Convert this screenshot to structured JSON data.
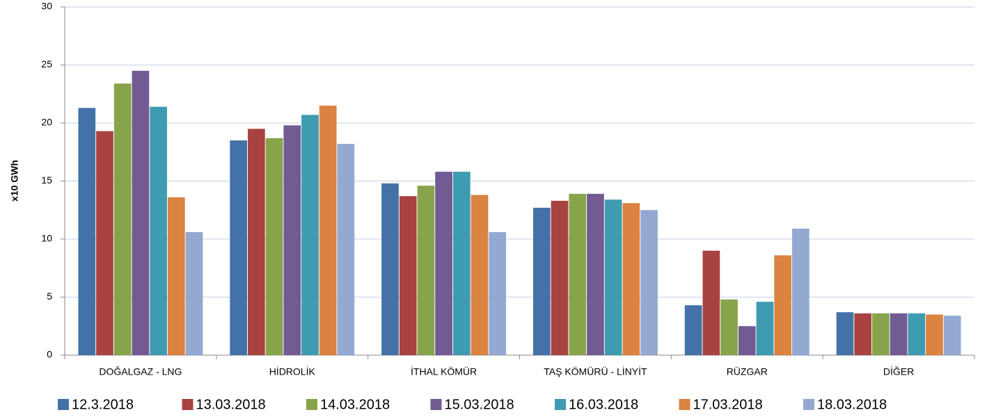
{
  "chart_data": {
    "type": "bar",
    "y_label": "x10 GWh",
    "categories": [
      "DOĞALGAZ - LNG",
      "HİDROLİK",
      "İTHAL KÖMÜR",
      "TAŞ KÖMÜRÜ - LİNYİT",
      "RÜZGAR",
      "DİĞER"
    ],
    "series": [
      {
        "name": "12.3.2018",
        "color": "#4472a8",
        "values": [
          21.3,
          18.5,
          14.8,
          12.7,
          4.3,
          3.7
        ]
      },
      {
        "name": "13.03.2018",
        "color": "#a94342",
        "values": [
          19.3,
          19.5,
          13.7,
          13.3,
          9.0,
          3.6
        ]
      },
      {
        "name": "14.03.2018",
        "color": "#88a44b",
        "values": [
          23.4,
          18.7,
          14.6,
          13.9,
          4.8,
          3.6
        ]
      },
      {
        "name": "15.03.2018",
        "color": "#725a92",
        "values": [
          24.5,
          19.8,
          15.8,
          13.9,
          2.5,
          3.6
        ]
      },
      {
        "name": "16.03.2018",
        "color": "#3f9bb1",
        "values": [
          21.4,
          20.7,
          15.8,
          13.4,
          4.6,
          3.6
        ]
      },
      {
        "name": "17.03.2018",
        "color": "#db8340",
        "values": [
          13.6,
          21.5,
          13.8,
          13.1,
          8.6,
          3.5
        ]
      },
      {
        "name": "18.03.2018",
        "color": "#93a9d2",
        "values": [
          10.6,
          18.2,
          10.6,
          12.5,
          10.9,
          3.4
        ]
      }
    ],
    "ylim": [
      0,
      30
    ],
    "yticks": [
      0,
      5,
      10,
      15,
      20,
      25,
      30
    ],
    "grid": true,
    "legend": "bottom"
  }
}
